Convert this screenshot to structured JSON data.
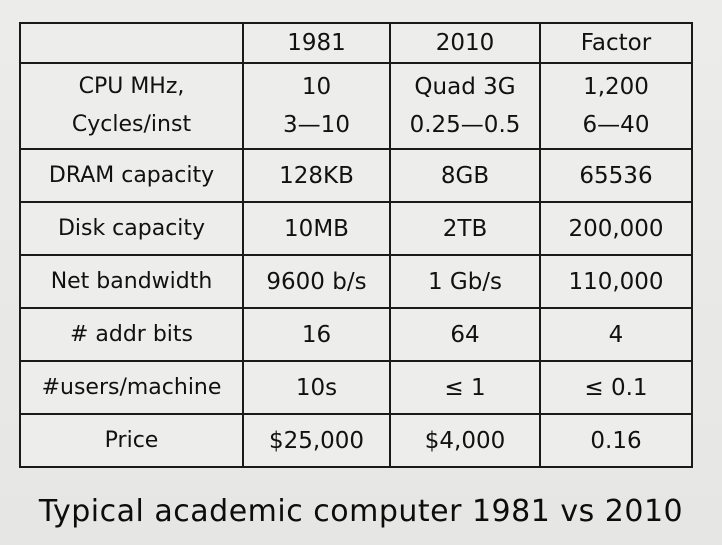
{
  "table": {
    "headers": [
      "",
      "1981",
      "2010",
      "Factor"
    ],
    "rows": [
      {
        "label": [
          "CPU MHz,",
          "Cycles/inst"
        ],
        "y1981": [
          "10",
          "3—10"
        ],
        "y2010": [
          "Quad 3G",
          "0.25—0.5"
        ],
        "factor": [
          "1,200",
          "6—40"
        ]
      },
      {
        "label": "DRAM capacity",
        "y1981": "128KB",
        "y2010": "8GB",
        "factor": "65536"
      },
      {
        "label": "Disk capacity",
        "y1981": "10MB",
        "y2010": "2TB",
        "factor": "200,000"
      },
      {
        "label": "Net bandwidth",
        "y1981": "9600 b/s",
        "y2010": "1 Gb/s",
        "factor": "110,000"
      },
      {
        "label": "# addr bits",
        "y1981": "16",
        "y2010": "64",
        "factor": "4"
      },
      {
        "label": "#users/machine",
        "y1981": "10s",
        "y2010": "≤ 1",
        "factor": "≤ 0.1"
      },
      {
        "label": "Price",
        "y1981": "$25,000",
        "y2010": "$4,000",
        "factor": "0.16"
      }
    ]
  },
  "caption": "Typical academic computer 1981 vs 2010"
}
